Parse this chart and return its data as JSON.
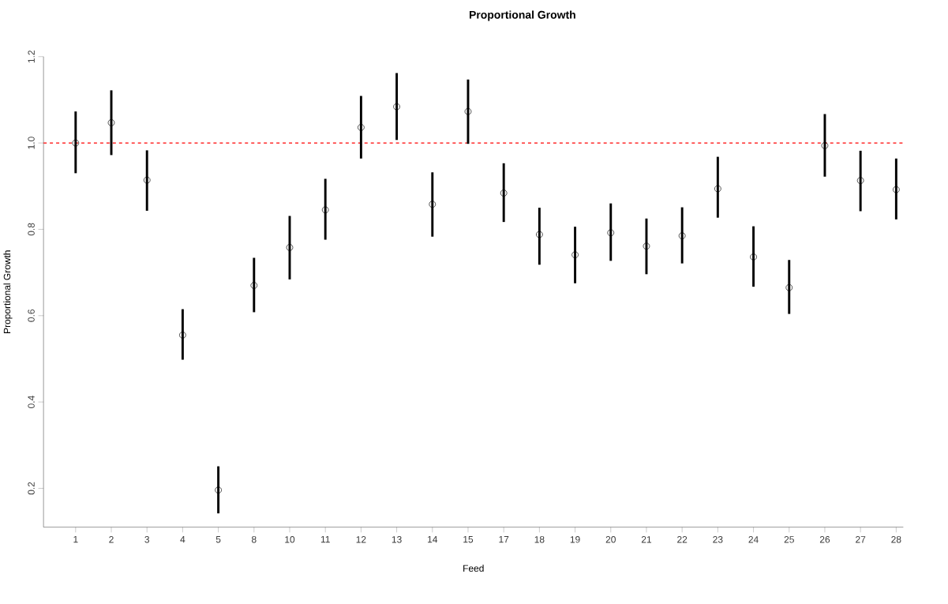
{
  "chart_data": {
    "type": "scatter",
    "title": "Proportional Growth",
    "xlabel": "Feed",
    "ylabel": "Proportional Growth",
    "categories": [
      "1",
      "2",
      "3",
      "4",
      "5",
      "8",
      "10",
      "11",
      "12",
      "13",
      "14",
      "15",
      "17",
      "18",
      "19",
      "20",
      "21",
      "22",
      "23",
      "24",
      "25",
      "26",
      "27",
      "28"
    ],
    "series": [
      {
        "color": "#000000",
        "values": [
          1.0,
          1.047,
          0.914,
          0.555,
          0.196,
          0.67,
          0.758,
          0.845,
          1.036,
          1.084,
          0.858,
          1.073,
          0.884,
          0.788,
          0.741,
          0.792,
          0.761,
          0.785,
          0.894,
          0.736,
          0.665,
          0.994,
          0.913,
          0.892
        ],
        "errors": [
          [
            0.93,
            1.073
          ],
          [
            0.972,
            1.122
          ],
          [
            0.843,
            0.983
          ],
          [
            0.498,
            0.615
          ],
          [
            0.142,
            0.251
          ],
          [
            0.608,
            0.734
          ],
          [
            0.684,
            0.831
          ],
          [
            0.776,
            0.917
          ],
          [
            0.964,
            1.109
          ],
          [
            1.007,
            1.162
          ],
          [
            0.783,
            0.932
          ],
          [
            0.998,
            1.147
          ],
          [
            0.817,
            0.953
          ],
          [
            0.718,
            0.85
          ],
          [
            0.675,
            0.806
          ],
          [
            0.727,
            0.86
          ],
          [
            0.696,
            0.825
          ],
          [
            0.721,
            0.851
          ],
          [
            0.827,
            0.968
          ],
          [
            0.667,
            0.807
          ],
          [
            0.604,
            0.729
          ],
          [
            0.922,
            1.067
          ],
          [
            0.842,
            0.982
          ],
          [
            0.823,
            0.964
          ]
        ]
      }
    ],
    "marker": "circle",
    "ylim": [
      0.11,
      1.2
    ],
    "yticks": [
      0.2,
      0.4,
      0.6,
      0.8,
      {
        "value": 1.0,
        "label": "1.0"
      },
      1.2
    ],
    "ref_lines": [
      {
        "axis": "y",
        "value": 1.0,
        "color": "#ff0000",
        "line_style": "dashed"
      }
    ],
    "grid": false
  }
}
